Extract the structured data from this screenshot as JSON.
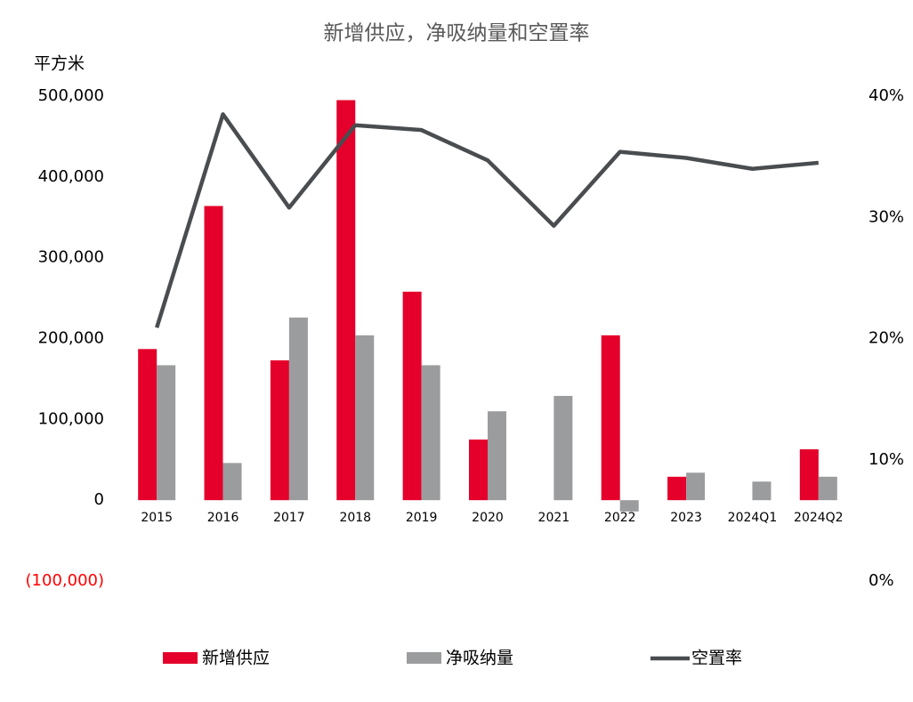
{
  "chart_data": {
    "type": "bar_line",
    "title": "新增供应，净吸纳量和空置率",
    "y_label": "平方米",
    "categories": [
      "2015",
      "2016",
      "2017",
      "2018",
      "2019",
      "2020",
      "2021",
      "2022",
      "2023",
      "2024Q1",
      "2024Q2"
    ],
    "series": [
      {
        "name": "新增供应",
        "type": "bar",
        "color": "#e4002b",
        "values": [
          187000,
          364000,
          173000,
          495000,
          258000,
          75000,
          null,
          204000,
          29000,
          null,
          63000
        ]
      },
      {
        "name": "净吸纳量",
        "type": "bar",
        "color": "#9b9c9e",
        "values": [
          167000,
          46000,
          226000,
          204000,
          167000,
          110000,
          129000,
          -14000,
          34000,
          23000,
          29000
        ]
      },
      {
        "name": "空置率",
        "type": "line",
        "axis": "y2",
        "color": "#4a4d50",
        "values": [
          20.9,
          38.5,
          30.8,
          37.6,
          37.2,
          34.7,
          29.3,
          35.4,
          34.9,
          34.0,
          34.5
        ]
      }
    ],
    "ylim": [
      -100000,
      500000
    ],
    "yticks": [
      {
        "value": -100000,
        "label": "(100,000)"
      },
      0,
      {
        "value": 100000,
        "label": "100,000"
      },
      {
        "value": 200000,
        "label": "200,000"
      },
      {
        "value": 300000,
        "label": "300,000"
      },
      {
        "value": 400000,
        "label": "400,000"
      },
      {
        "value": 500000,
        "label": "500,000"
      }
    ],
    "y2lim": [
      0,
      40
    ],
    "y2ticks": [
      {
        "value": 0,
        "label": "0%"
      },
      {
        "value": 10,
        "label": "10%"
      },
      {
        "value": 20,
        "label": "20%"
      },
      {
        "value": 30,
        "label": "30%"
      },
      {
        "value": 40,
        "label": "40%"
      }
    ],
    "negative_tick_color": "#ff0000",
    "legend": "bottom"
  }
}
